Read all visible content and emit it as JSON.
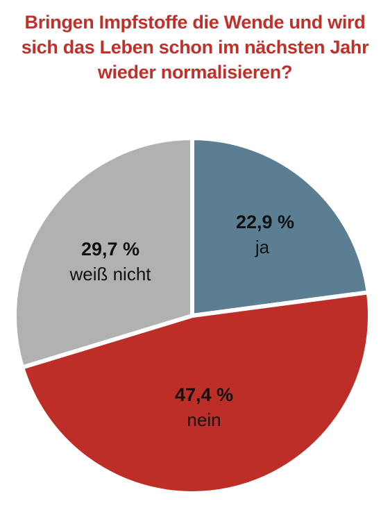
{
  "title_lines": [
    "Bringen Impfstoffe die Wende und wird",
    "sich das Leben schon im nächsten Jahr",
    "wieder normalisieren?"
  ],
  "colors": {
    "title": "#c0302a",
    "ja": "#5b7e93",
    "nein": "#bd2e28",
    "weiss_nicht": "#b1b1b1",
    "separator": "#ffffff"
  },
  "chart_data": {
    "type": "pie",
    "title": "Bringen Impfstoffe die Wende und wird sich das Leben schon im nächsten Jahr wieder normalisieren?",
    "slices": [
      {
        "label": "ja",
        "value": 22.9,
        "value_label": "22,9 %",
        "color": "#5b7e93"
      },
      {
        "label": "nein",
        "value": 47.4,
        "value_label": "47,4 %",
        "color": "#bd2e28"
      },
      {
        "label": "weiß nicht",
        "value": 29.7,
        "value_label": "29,7 %",
        "color": "#b1b1b1"
      }
    ],
    "start": "12 o'clock",
    "direction": "clockwise",
    "legend": "none"
  }
}
